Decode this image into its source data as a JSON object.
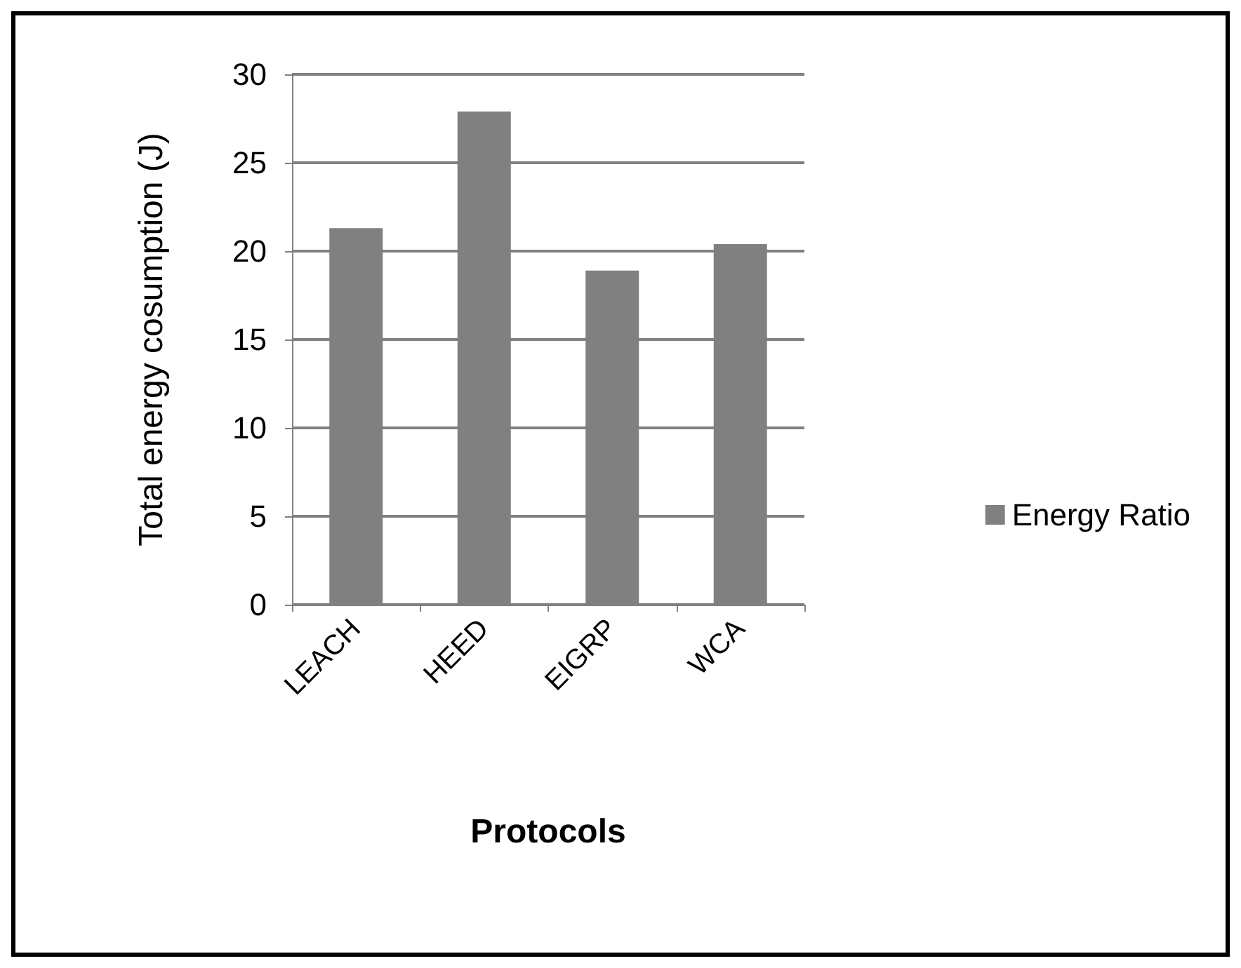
{
  "chart_data": {
    "type": "bar",
    "xlabel": "Protocols",
    "ylabel": "Total energy cosumption (J)",
    "categories": [
      "LEACH",
      "HEED",
      "EIGRP",
      "WCA"
    ],
    "series": [
      {
        "name": "Energy Ratio",
        "color": "#808080",
        "values": [
          21.3,
          27.9,
          18.9,
          20.4
        ]
      }
    ],
    "ylim": [
      0,
      30
    ],
    "yticks": [
      0,
      5,
      10,
      15,
      20,
      25,
      30
    ],
    "grid": "y",
    "legend": "right"
  }
}
